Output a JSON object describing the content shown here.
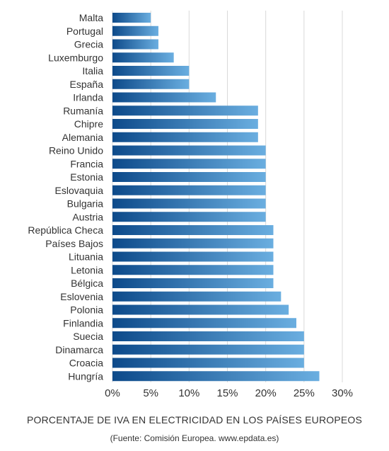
{
  "chart_data": {
    "type": "bar",
    "orientation": "horizontal",
    "categories": [
      "Malta",
      "Portugal",
      "Grecia",
      "Luxemburgo",
      "Italia",
      "España",
      "Irlanda",
      "Rumanía",
      "Chipre",
      "Alemania",
      "Reino Unido",
      "Francia",
      "Estonia",
      "Eslovaquia",
      "Bulgaria",
      "Austria",
      "República Checa",
      "Países Bajos",
      "Lituania",
      "Letonia",
      "Bélgica",
      "Eslovenia",
      "Polonia",
      "Finlandia",
      "Suecia",
      "Dinamarca",
      "Croacia",
      "Hungría"
    ],
    "values": [
      5,
      6,
      6,
      8,
      10,
      10,
      13.5,
      19,
      19,
      19,
      20,
      20,
      20,
      20,
      20,
      20,
      21,
      21,
      21,
      21,
      21,
      22,
      23,
      24,
      25,
      25,
      25,
      27
    ],
    "xlim": [
      0,
      30
    ],
    "xticks": [
      0,
      5,
      10,
      15,
      20,
      25,
      30
    ],
    "xtick_labels": [
      "0%",
      "5%",
      "10%",
      "15%",
      "20%",
      "25%",
      "30%"
    ],
    "grid": "vertical",
    "colors": {
      "bar_dark": "#0d4a8a",
      "bar_light": "#6aaee0",
      "grid": "#d9d9d9",
      "text": "#333333"
    }
  },
  "caption": {
    "title": "PORCENTAJE DE IVA EN ELECTRICIDAD EN LOS PAÍSES EUROPEOS",
    "source": "(Fuente: Comisión Europea. www.epdata.es)"
  }
}
